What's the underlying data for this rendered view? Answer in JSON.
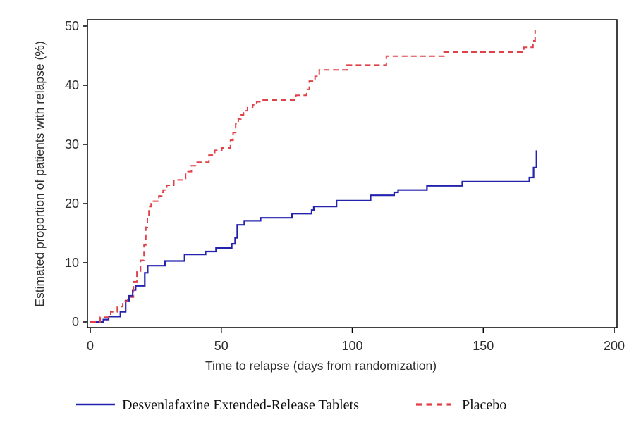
{
  "chart_data": {
    "type": "line",
    "subtype": "kaplan-meier-step",
    "title": "",
    "xlabel": "Time to relapse (days from randomization)",
    "ylabel": "Estimated proportion of patients with relapse (%)",
    "xlim": [
      0,
      200
    ],
    "ylim": [
      0,
      50
    ],
    "x_ticks": [
      0,
      50,
      100,
      150,
      200
    ],
    "y_ticks": [
      0,
      10,
      20,
      30,
      40,
      50
    ],
    "grid": false,
    "legend_position": "bottom",
    "series": [
      {
        "name": "Desvenlafaxine Extended-Release Tablets",
        "color": "#2323ad",
        "line_style": "solid",
        "points": [
          [
            0,
            0
          ],
          [
            5,
            0.4
          ],
          [
            7,
            0.9
          ],
          [
            11.5,
            1.7
          ],
          [
            13.5,
            3.6
          ],
          [
            14.8,
            4.4
          ],
          [
            16.2,
            5.4
          ],
          [
            17.3,
            6.1
          ],
          [
            20.8,
            8.3
          ],
          [
            21.9,
            9.5
          ],
          [
            28.5,
            10.3
          ],
          [
            36,
            11.4
          ],
          [
            44,
            11.9
          ],
          [
            48,
            12.5
          ],
          [
            54,
            13.2
          ],
          [
            55.3,
            14.2
          ],
          [
            56.1,
            16.4
          ],
          [
            58.8,
            17.1
          ],
          [
            65,
            17.6
          ],
          [
            77,
            18.3
          ],
          [
            84.5,
            18.9
          ],
          [
            85.3,
            19.5
          ],
          [
            94,
            20.5
          ],
          [
            107,
            21.4
          ],
          [
            116,
            21.9
          ],
          [
            117.5,
            22.3
          ],
          [
            128.5,
            23
          ],
          [
            142,
            23.7
          ],
          [
            167.6,
            24.4
          ],
          [
            169.2,
            26.1
          ],
          [
            170.3,
            29
          ]
        ]
      },
      {
        "name": "Placebo",
        "color": "#e04048",
        "line_style": "dashed",
        "points": [
          [
            0,
            0
          ],
          [
            3.8,
            0.8
          ],
          [
            7.8,
            1.7
          ],
          [
            10.3,
            2.6
          ],
          [
            12.4,
            3.5
          ],
          [
            14.3,
            4.2
          ],
          [
            16.5,
            6.8
          ],
          [
            17.8,
            8.6
          ],
          [
            19.2,
            10.4
          ],
          [
            20.5,
            13
          ],
          [
            21.2,
            16
          ],
          [
            21.8,
            17.7
          ],
          [
            22.4,
            19.5
          ],
          [
            23.2,
            20.4
          ],
          [
            26.2,
            21.3
          ],
          [
            27.3,
            21.9
          ],
          [
            27.8,
            22.3
          ],
          [
            29.2,
            23.1
          ],
          [
            31.9,
            24
          ],
          [
            36.4,
            25.4
          ],
          [
            38.6,
            26.4
          ],
          [
            40.8,
            27
          ],
          [
            45.3,
            28.2
          ],
          [
            47.5,
            29
          ],
          [
            50.2,
            29.4
          ],
          [
            53.5,
            30.7
          ],
          [
            54.5,
            32
          ],
          [
            55.5,
            33.5
          ],
          [
            56.5,
            34.3
          ],
          [
            57.5,
            35
          ],
          [
            58.5,
            35.7
          ],
          [
            60,
            36.2
          ],
          [
            62,
            36.7
          ],
          [
            63.5,
            37.2
          ],
          [
            66,
            37.5
          ],
          [
            78.5,
            38.3
          ],
          [
            82.6,
            39.3
          ],
          [
            83.6,
            40.7
          ],
          [
            85.8,
            41.5
          ],
          [
            87.4,
            42.6
          ],
          [
            98,
            43.4
          ],
          [
            113,
            44.9
          ],
          [
            135,
            45.6
          ],
          [
            165.5,
            46.4
          ],
          [
            169,
            47.5
          ],
          [
            169.8,
            49.3
          ]
        ]
      }
    ]
  }
}
